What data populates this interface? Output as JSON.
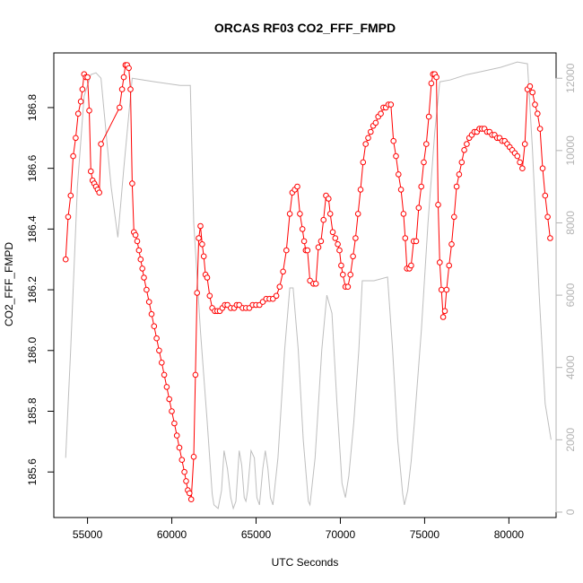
{
  "chart_data": {
    "type": "line",
    "title": "ORCAS RF03 CO2_FFF_FMPD",
    "xlabel": "UTC Seconds",
    "ylabel": "CO2_FFF_FMPD",
    "y2label": "",
    "xlim": [
      53000,
      82800
    ],
    "ylim": [
      185.45,
      186.98
    ],
    "y2lim": [
      -150,
      12700
    ],
    "x_ticks": [
      55000,
      60000,
      65000,
      70000,
      75000,
      80000
    ],
    "y_ticks": [
      185.6,
      185.8,
      186.0,
      186.2,
      186.4,
      186.6,
      186.8
    ],
    "y2_ticks": [
      0,
      2000,
      4000,
      6000,
      8000,
      10000,
      12000
    ],
    "grid": false,
    "colors": {
      "co2": "#ff0000",
      "altitude": "#bebebe",
      "right_axis": "#b3b3b3"
    },
    "series": [
      {
        "axis": "left",
        "style": "points-lines",
        "points": [
          [
            53700,
            186.3
          ],
          [
            53850,
            186.44
          ],
          [
            54000,
            186.51
          ],
          [
            54150,
            186.64
          ],
          [
            54300,
            186.7
          ],
          [
            54450,
            186.78
          ],
          [
            54600,
            186.82
          ],
          [
            54700,
            186.86
          ],
          [
            54800,
            186.91
          ],
          [
            54900,
            186.9
          ],
          [
            55000,
            186.9
          ],
          [
            55100,
            186.79
          ],
          [
            55200,
            186.59
          ],
          [
            55300,
            186.56
          ],
          [
            55400,
            186.55
          ],
          [
            55500,
            186.54
          ],
          [
            55600,
            186.53
          ],
          [
            55700,
            186.52
          ],
          [
            55800,
            186.68
          ],
          [
            56900,
            186.8
          ],
          [
            57050,
            186.86
          ],
          [
            57150,
            186.9
          ],
          [
            57250,
            186.94
          ],
          [
            57350,
            186.94
          ],
          [
            57450,
            186.93
          ],
          [
            57550,
            186.86
          ],
          [
            57650,
            186.55
          ],
          [
            57750,
            186.39
          ],
          [
            57850,
            186.38
          ],
          [
            57950,
            186.36
          ],
          [
            58050,
            186.33
          ],
          [
            58150,
            186.3
          ],
          [
            58250,
            186.27
          ],
          [
            58350,
            186.24
          ],
          [
            58500,
            186.2
          ],
          [
            58650,
            186.16
          ],
          [
            58800,
            186.12
          ],
          [
            58950,
            186.08
          ],
          [
            59100,
            186.04
          ],
          [
            59250,
            186.0
          ],
          [
            59400,
            185.96
          ],
          [
            59550,
            185.92
          ],
          [
            59700,
            185.88
          ],
          [
            59850,
            185.84
          ],
          [
            60000,
            185.8
          ],
          [
            60150,
            185.76
          ],
          [
            60300,
            185.72
          ],
          [
            60450,
            185.68
          ],
          [
            60600,
            185.64
          ],
          [
            60750,
            185.6
          ],
          [
            60850,
            185.57
          ],
          [
            60950,
            185.54
          ],
          [
            61050,
            185.53
          ],
          [
            61150,
            185.51
          ],
          [
            61300,
            185.65
          ],
          [
            61400,
            185.92
          ],
          [
            61500,
            186.19
          ],
          [
            61600,
            186.37
          ],
          [
            61700,
            186.41
          ],
          [
            61800,
            186.35
          ],
          [
            61900,
            186.31
          ],
          [
            62000,
            186.25
          ],
          [
            62100,
            186.24
          ],
          [
            62250,
            186.18
          ],
          [
            62400,
            186.14
          ],
          [
            62550,
            186.13
          ],
          [
            62700,
            186.13
          ],
          [
            62850,
            186.13
          ],
          [
            63000,
            186.14
          ],
          [
            63150,
            186.15
          ],
          [
            63300,
            186.15
          ],
          [
            63500,
            186.14
          ],
          [
            63700,
            186.14
          ],
          [
            63850,
            186.15
          ],
          [
            64000,
            186.15
          ],
          [
            64200,
            186.14
          ],
          [
            64400,
            186.14
          ],
          [
            64600,
            186.14
          ],
          [
            64800,
            186.15
          ],
          [
            65000,
            186.15
          ],
          [
            65200,
            186.15
          ],
          [
            65400,
            186.16
          ],
          [
            65600,
            186.17
          ],
          [
            65800,
            186.17
          ],
          [
            66000,
            186.17
          ],
          [
            66200,
            186.18
          ],
          [
            66400,
            186.21
          ],
          [
            66600,
            186.26
          ],
          [
            66800,
            186.33
          ],
          [
            67000,
            186.45
          ],
          [
            67150,
            186.52
          ],
          [
            67300,
            186.53
          ],
          [
            67450,
            186.54
          ],
          [
            67600,
            186.45
          ],
          [
            67750,
            186.4
          ],
          [
            67850,
            186.36
          ],
          [
            67950,
            186.33
          ],
          [
            68050,
            186.33
          ],
          [
            68200,
            186.23
          ],
          [
            68400,
            186.22
          ],
          [
            68550,
            186.22
          ],
          [
            68700,
            186.34
          ],
          [
            68850,
            186.36
          ],
          [
            69000,
            186.43
          ],
          [
            69150,
            186.51
          ],
          [
            69300,
            186.5
          ],
          [
            69400,
            186.45
          ],
          [
            69550,
            186.39
          ],
          [
            69700,
            186.37
          ],
          [
            69850,
            186.35
          ],
          [
            69950,
            186.33
          ],
          [
            70050,
            186.28
          ],
          [
            70150,
            186.25
          ],
          [
            70300,
            186.21
          ],
          [
            70450,
            186.21
          ],
          [
            70600,
            186.25
          ],
          [
            70750,
            186.31
          ],
          [
            70900,
            186.37
          ],
          [
            71050,
            186.45
          ],
          [
            71200,
            186.53
          ],
          [
            71350,
            186.62
          ],
          [
            71500,
            186.68
          ],
          [
            71650,
            186.7
          ],
          [
            71800,
            186.72
          ],
          [
            71950,
            186.74
          ],
          [
            72100,
            186.75
          ],
          [
            72250,
            186.77
          ],
          [
            72400,
            186.78
          ],
          [
            72550,
            186.8
          ],
          [
            72700,
            186.8
          ],
          [
            72850,
            186.81
          ],
          [
            73000,
            186.81
          ],
          [
            73150,
            186.69
          ],
          [
            73300,
            186.64
          ],
          [
            73450,
            186.58
          ],
          [
            73600,
            186.53
          ],
          [
            73750,
            186.45
          ],
          [
            73850,
            186.37
          ],
          [
            73950,
            186.27
          ],
          [
            74100,
            186.27
          ],
          [
            74200,
            186.28
          ],
          [
            74350,
            186.36
          ],
          [
            74500,
            186.36
          ],
          [
            74650,
            186.47
          ],
          [
            74800,
            186.54
          ],
          [
            74950,
            186.62
          ],
          [
            75100,
            186.68
          ],
          [
            75250,
            186.77
          ],
          [
            75400,
            186.88
          ],
          [
            75500,
            186.91
          ],
          [
            75600,
            186.91
          ],
          [
            75700,
            186.9
          ],
          [
            75800,
            186.48
          ],
          [
            75900,
            186.29
          ],
          [
            76000,
            186.2
          ],
          [
            76100,
            186.11
          ],
          [
            76200,
            186.13
          ],
          [
            76300,
            186.2
          ],
          [
            76450,
            186.28
          ],
          [
            76600,
            186.35
          ],
          [
            76750,
            186.44
          ],
          [
            76900,
            186.54
          ],
          [
            77050,
            186.58
          ],
          [
            77200,
            186.62
          ],
          [
            77350,
            186.66
          ],
          [
            77500,
            186.68
          ],
          [
            77650,
            186.7
          ],
          [
            77800,
            186.71
          ],
          [
            77950,
            186.72
          ],
          [
            78100,
            186.72
          ],
          [
            78250,
            186.73
          ],
          [
            78400,
            186.73
          ],
          [
            78550,
            186.73
          ],
          [
            78700,
            186.72
          ],
          [
            78850,
            186.72
          ],
          [
            79000,
            186.71
          ],
          [
            79150,
            186.71
          ],
          [
            79300,
            186.7
          ],
          [
            79450,
            186.7
          ],
          [
            79600,
            186.69
          ],
          [
            79750,
            186.69
          ],
          [
            79900,
            186.68
          ],
          [
            80050,
            186.67
          ],
          [
            80200,
            186.66
          ],
          [
            80350,
            186.65
          ],
          [
            80500,
            186.64
          ],
          [
            80650,
            186.62
          ],
          [
            80800,
            186.6
          ],
          [
            80950,
            186.68
          ],
          [
            81100,
            186.86
          ],
          [
            81250,
            186.87
          ],
          [
            81400,
            186.85
          ],
          [
            81550,
            186.81
          ],
          [
            81700,
            186.78
          ],
          [
            81850,
            186.73
          ],
          [
            82000,
            186.6
          ],
          [
            82150,
            186.51
          ],
          [
            82300,
            186.44
          ],
          [
            82450,
            186.37
          ]
        ]
      },
      {
        "axis": "right",
        "style": "line",
        "points": [
          [
            53700,
            1500
          ],
          [
            54000,
            4500
          ],
          [
            54400,
            9000
          ],
          [
            54800,
            11500
          ],
          [
            55200,
            12100
          ],
          [
            55500,
            12150
          ],
          [
            55800,
            12000
          ],
          [
            56400,
            9000
          ],
          [
            56800,
            7600
          ],
          [
            57150,
            9500
          ],
          [
            57650,
            12000
          ],
          [
            59000,
            11900
          ],
          [
            60500,
            11800
          ],
          [
            61100,
            11800
          ],
          [
            61300,
            8000
          ],
          [
            61700,
            5000
          ],
          [
            62100,
            2500
          ],
          [
            62400,
            500
          ],
          [
            62500,
            200
          ],
          [
            62750,
            100
          ],
          [
            62950,
            600
          ],
          [
            63100,
            1700
          ],
          [
            63300,
            1200
          ],
          [
            63500,
            400
          ],
          [
            63650,
            100
          ],
          [
            63800,
            300
          ],
          [
            64000,
            1700
          ],
          [
            64150,
            1300
          ],
          [
            64300,
            400
          ],
          [
            64400,
            300
          ],
          [
            64500,
            600
          ],
          [
            64700,
            1700
          ],
          [
            64900,
            1500
          ],
          [
            65050,
            400
          ],
          [
            65200,
            200
          ],
          [
            65400,
            1200
          ],
          [
            65550,
            1700
          ],
          [
            65700,
            1200
          ],
          [
            65850,
            400
          ],
          [
            66000,
            200
          ],
          [
            66300,
            1500
          ],
          [
            66700,
            4500
          ],
          [
            67000,
            6200
          ],
          [
            67200,
            6200
          ],
          [
            67500,
            4500
          ],
          [
            67800,
            2000
          ],
          [
            68100,
            300
          ],
          [
            68200,
            200
          ],
          [
            68500,
            1500
          ],
          [
            68900,
            4500
          ],
          [
            69200,
            6000
          ],
          [
            69500,
            5500
          ],
          [
            69800,
            3000
          ],
          [
            70100,
            800
          ],
          [
            70300,
            400
          ],
          [
            70500,
            1000
          ],
          [
            70800,
            2500
          ],
          [
            71100,
            4500
          ],
          [
            71300,
            6400
          ],
          [
            72000,
            6400
          ],
          [
            72800,
            6500
          ],
          [
            73100,
            4500
          ],
          [
            73400,
            2000
          ],
          [
            73700,
            500
          ],
          [
            73800,
            200
          ],
          [
            74000,
            600
          ],
          [
            74200,
            1400
          ],
          [
            74400,
            2500
          ],
          [
            74800,
            5000
          ],
          [
            75200,
            8000
          ],
          [
            75600,
            10500
          ],
          [
            75900,
            11900
          ],
          [
            76500,
            11950
          ],
          [
            77500,
            12100
          ],
          [
            78500,
            12200
          ],
          [
            79500,
            12300
          ],
          [
            80500,
            12450
          ],
          [
            81100,
            12400
          ],
          [
            81400,
            10000
          ],
          [
            81800,
            6000
          ],
          [
            82150,
            3000
          ],
          [
            82500,
            2000
          ]
        ]
      }
    ]
  }
}
